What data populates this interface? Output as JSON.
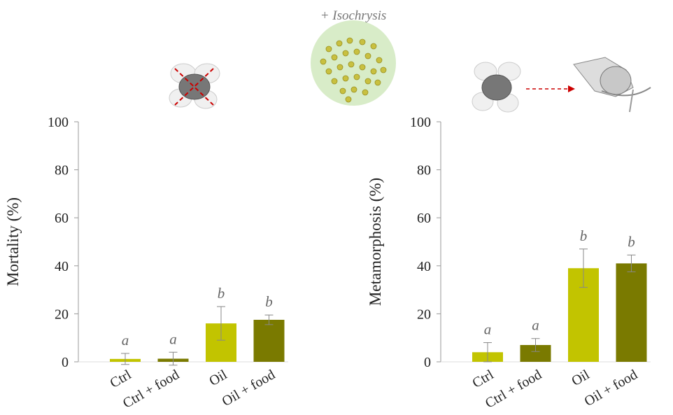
{
  "figure": {
    "annotation": "+ Isochrysis"
  },
  "chart_data": [
    {
      "type": "bar",
      "ylabel": "Mortality (%)",
      "categories": [
        "Ctrl",
        "Ctrl + food",
        "Oil",
        "Oil + food"
      ],
      "values": [
        1.2,
        1.3,
        16,
        17.5
      ],
      "errors": [
        2.3,
        2.7,
        7,
        2
      ],
      "letters": [
        "a",
        "a",
        "b",
        "b"
      ],
      "colors": [
        "#c2c400",
        "#7a7a00",
        "#c2c400",
        "#7a7a00"
      ],
      "ylim": [
        0,
        100
      ],
      "yticks": [
        0,
        20,
        40,
        60,
        80,
        100
      ]
    },
    {
      "type": "bar",
      "ylabel": "Metamorphosis (%)",
      "categories": [
        "Ctrl",
        "Ctrl + food",
        "Oil",
        "Oil + food"
      ],
      "values": [
        4,
        7,
        39,
        41
      ],
      "errors": [
        4,
        2.7,
        8,
        3.5
      ],
      "letters": [
        "a",
        "a",
        "b",
        "b"
      ],
      "colors": [
        "#c2c400",
        "#7a7a00",
        "#c2c400",
        "#7a7a00"
      ],
      "ylim": [
        0,
        100
      ],
      "yticks": [
        0,
        20,
        40,
        60,
        80,
        100
      ]
    }
  ]
}
